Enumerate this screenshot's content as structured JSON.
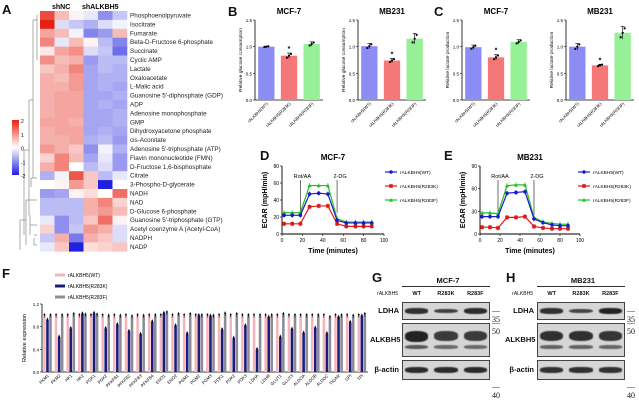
{
  "panels": {
    "A": "A",
    "B": "B",
    "C": "C",
    "D": "D",
    "E": "E",
    "F": "F",
    "G": "G",
    "H": "H"
  },
  "chart_data": [
    {
      "id": "A",
      "type": "heatmap",
      "group_labels": [
        "shNC",
        "shALKBH5"
      ],
      "columns": 6,
      "colorbar": {
        "min": -2,
        "max": 2,
        "ticks": [
          "2",
          "1",
          "0",
          "-1",
          "-2"
        ],
        "low_color": "#2020e0",
        "mid_color": "#ffffff",
        "high_color": "#e82010"
      },
      "rows": [
        {
          "name": "Phosphoenolpyruvate",
          "values": [
            1.6,
            0.6,
            0.1,
            -0.2,
            -1.0,
            -0.5
          ]
        },
        {
          "name": "Isocitrate",
          "values": [
            2.0,
            -0.3,
            -0.5,
            -0.7,
            -0.3,
            -0.1
          ]
        },
        {
          "name": "Fumarate",
          "values": [
            0.8,
            0.6,
            -0.1,
            -1.1,
            -0.9,
            0.6
          ]
        },
        {
          "name": "Beta-D-Fructose 6-phosphate",
          "values": [
            1.1,
            -0.2,
            0.6,
            0.1,
            -0.6,
            -1.1
          ]
        },
        {
          "name": "Succinate",
          "values": [
            0.2,
            0.8,
            1.0,
            -0.3,
            -0.5,
            -1.3
          ]
        },
        {
          "name": "Cyclic AMP",
          "values": [
            1.0,
            0.6,
            0.7,
            -0.9,
            -0.6,
            -0.6
          ]
        },
        {
          "name": "Lactate",
          "values": [
            0.5,
            0.7,
            1.1,
            -0.8,
            -0.6,
            -0.7
          ]
        },
        {
          "name": "Oxaloacetate",
          "values": [
            0.7,
            0.6,
            0.9,
            -0.8,
            -0.7,
            -0.7
          ]
        },
        {
          "name": "L-Malic acid",
          "values": [
            0.7,
            0.7,
            0.9,
            -0.8,
            -0.7,
            -0.8
          ]
        },
        {
          "name": "Guanosine 5'-diphosphate (GDP)",
          "values": [
            0.7,
            0.8,
            0.8,
            -0.8,
            -0.8,
            -0.7
          ]
        },
        {
          "name": "ADP",
          "values": [
            0.7,
            0.8,
            0.8,
            -0.8,
            -0.7,
            -0.8
          ]
        },
        {
          "name": "Adenosine monophosphate",
          "values": [
            0.7,
            0.8,
            0.8,
            -0.8,
            -0.8,
            -0.7
          ]
        },
        {
          "name": "GMP",
          "values": [
            0.8,
            0.8,
            0.7,
            -0.8,
            -0.8,
            -0.7
          ]
        },
        {
          "name": "Dihydroxyacetone phosphate",
          "values": [
            0.7,
            0.8,
            0.8,
            -0.8,
            -0.7,
            -0.8
          ]
        },
        {
          "name": "cis-Aconitate",
          "values": [
            0.7,
            0.7,
            0.8,
            -0.7,
            -0.6,
            -0.9
          ]
        },
        {
          "name": "Adenosine 5'-triphosphate (ATP)",
          "values": [
            0.9,
            0.7,
            0.5,
            -1.0,
            -0.1,
            -0.7
          ]
        },
        {
          "name": "Flavin mononucleotide (FMN)",
          "values": [
            0.4,
            1.1,
            0.6,
            -0.8,
            -0.2,
            -0.9
          ]
        },
        {
          "name": "D-Fructose 1,6-bisphosphate",
          "values": [
            0.7,
            1.1,
            0.0,
            -0.6,
            -0.3,
            -0.9
          ]
        },
        {
          "name": "Citrate",
          "values": [
            -0.7,
            -0.1,
            1.5,
            0.5,
            -0.6,
            -0.2
          ]
        },
        {
          "name": "3-Phospho-D-glycerate",
          "values": [
            0.0,
            0.1,
            0.9,
            0.5,
            -2.0,
            0.0
          ]
        },
        {
          "name": "NADH",
          "values": [
            -0.9,
            -0.8,
            0.1,
            0.3,
            0.0,
            1.3
          ]
        },
        {
          "name": "NAD",
          "values": [
            -0.6,
            -0.6,
            -0.6,
            0.7,
            1.1,
            0.4
          ]
        },
        {
          "name": "D-Glucose 6-phosphate",
          "values": [
            -0.6,
            -0.6,
            -0.6,
            0.7,
            0.9,
            0.6
          ]
        },
        {
          "name": "Guanosine 5'-triphosphate (GTP)",
          "values": [
            -0.2,
            -1.0,
            -0.6,
            0.5,
            1.3,
            0.1
          ]
        },
        {
          "name": "Acetyl coenzyme A (Acetyl-CoA)",
          "values": [
            0.4,
            -1.0,
            -0.5,
            0.9,
            0.7,
            -0.3
          ]
        },
        {
          "name": "NADPH",
          "values": [
            -0.5,
            0.7,
            -1.2,
            0.7,
            0.5,
            -0.3
          ]
        },
        {
          "name": "NADP",
          "values": [
            -0.2,
            0.5,
            -2.0,
            0.3,
            0.4,
            0.5
          ]
        }
      ]
    },
    {
      "id": "B1",
      "type": "bar",
      "title": "MCF-7",
      "ylabel": "Relative glucose consumption",
      "categories": [
        "rALKBH5(WT)",
        "rALKBH5(R283K)",
        "rALKBH5(R283F)"
      ],
      "values": [
        1.0,
        0.83,
        1.05
      ],
      "errors": [
        0.01,
        0.05,
        0.04
      ],
      "significance": [
        "",
        "*",
        ""
      ],
      "colors": [
        "#8c8cf5",
        "#f57878",
        "#96f096"
      ],
      "ylim": [
        0,
        1.5
      ],
      "yticks": [
        "0.0",
        "0.5",
        "1.0",
        "1.5"
      ]
    },
    {
      "id": "B2",
      "type": "bar",
      "title": "MB231",
      "ylabel": "Relative glucose consumption",
      "categories": [
        "rALKBH5(WT)",
        "rALKBH5(R283K)",
        "rALKBH5(R283F)"
      ],
      "values": [
        1.01,
        0.74,
        1.15
      ],
      "errors": [
        0.05,
        0.04,
        0.1
      ],
      "significance": [
        "",
        "*",
        ""
      ],
      "colors": [
        "#8c8cf5",
        "#f57878",
        "#96f096"
      ],
      "ylim": [
        0,
        1.5
      ],
      "yticks": [
        "0.0",
        "0.5",
        "1.0",
        "1.5"
      ]
    },
    {
      "id": "C1",
      "type": "bar",
      "title": "MCF-7",
      "ylabel": "Relative lactate production",
      "categories": [
        "rALKBH5(WT)",
        "rALKBH5(R283K)",
        "rALKBH5(R283F)"
      ],
      "values": [
        0.99,
        0.8,
        1.09
      ],
      "errors": [
        0.04,
        0.05,
        0.04
      ],
      "significance": [
        "",
        "*",
        ""
      ],
      "colors": [
        "#8c8cf5",
        "#f57878",
        "#96f096"
      ],
      "ylim": [
        0,
        1.5
      ],
      "yticks": [
        "0.0",
        "0.5",
        "1.0",
        "1.5"
      ]
    },
    {
      "id": "C2",
      "type": "bar",
      "title": "MB231",
      "ylabel": "Relative lactate production",
      "categories": [
        "rALKBH5(WT)",
        "rALKBH5(R283K)",
        "rALKBH5(R283F)"
      ],
      "values": [
        1.0,
        0.65,
        1.26
      ],
      "errors": [
        0.06,
        0.02,
        0.12
      ],
      "significance": [
        "",
        "*",
        ""
      ],
      "colors": [
        "#8c8cf5",
        "#f57878",
        "#96f096"
      ],
      "ylim": [
        0,
        1.5
      ],
      "yticks": [
        "0.0",
        "0.5",
        "1.0",
        "1.5"
      ]
    },
    {
      "id": "D",
      "type": "line",
      "title": "MCF-7",
      "xlabel": "Time (minutes)",
      "ylabel": "ECAR (mpH/min)",
      "x": [
        2,
        10,
        18,
        27,
        36,
        45,
        54,
        63,
        72,
        80,
        88
      ],
      "xlim": [
        0,
        100
      ],
      "xticks": [
        "0",
        "20",
        "40",
        "60",
        "80",
        "100"
      ],
      "ylim": [
        0,
        80
      ],
      "yticks": [
        "0",
        "20",
        "40",
        "60",
        "80"
      ],
      "annotations": [
        {
          "text": "Rot/AA",
          "x": 18
        },
        {
          "text": "2-DG",
          "x": 54
        }
      ],
      "legend_position": "right",
      "series": [
        {
          "name": "rALKBH5(WT)",
          "color": "#1a1ad0",
          "marker": "circle",
          "values": [
            22,
            22,
            22,
            47,
            48,
            47,
            16,
            13,
            13,
            13,
            13
          ]
        },
        {
          "name": "rALKBH5(R283K)",
          "color": "#e01818",
          "marker": "square",
          "values": [
            12,
            12,
            12,
            32,
            33,
            33,
            12,
            9,
            9,
            9,
            9
          ]
        },
        {
          "name": "rALKBH5(R283F)",
          "color": "#20c020",
          "marker": "triangle",
          "values": [
            25,
            25,
            25,
            57,
            57,
            57,
            18,
            14,
            14,
            14,
            14
          ]
        }
      ]
    },
    {
      "id": "E",
      "type": "line",
      "title": "MB231",
      "xlabel": "Time (minutes)",
      "ylabel": "ECAR (mpH/min)",
      "x": [
        2,
        10,
        18,
        27,
        36,
        45,
        54,
        63,
        72,
        80,
        88
      ],
      "xlim": [
        0,
        100
      ],
      "xticks": [
        "0",
        "20",
        "40",
        "60",
        "80",
        "100"
      ],
      "ylim": [
        0,
        90
      ],
      "yticks": [
        "0",
        "30",
        "60",
        "90"
      ],
      "annotations": [
        {
          "text": "Rot/AA",
          "x": 18
        },
        {
          "text": "2-DG",
          "x": 54
        }
      ],
      "legend_position": "right",
      "series": [
        {
          "name": "rALKBH5(WT)",
          "color": "#1a1ad0",
          "marker": "circle",
          "values": [
            23,
            23,
            23,
            54,
            55,
            56,
            20,
            15,
            12,
            11,
            11
          ]
        },
        {
          "name": "rALKBH5(R283K)",
          "color": "#e01818",
          "marker": "square",
          "values": [
            9,
            9,
            8,
            22,
            22,
            23,
            10,
            8,
            7,
            7,
            7
          ]
        },
        {
          "name": "rALKBH5(R283F)",
          "color": "#20c020",
          "marker": "triangle",
          "values": [
            28,
            28,
            27,
            64,
            65,
            65,
            22,
            16,
            14,
            13,
            13
          ]
        }
      ]
    },
    {
      "id": "F",
      "type": "bar",
      "ylabel": "Relative expression",
      "ylim": [
        0,
        1.2
      ],
      "yticks": [
        "0.0",
        "0.4",
        "0.8",
        "1.2"
      ],
      "legend_position": "top-left",
      "categories": [
        "PKM1",
        "PKM2",
        "HK1",
        "HK2",
        "PGK1",
        "PGK2",
        "PFKFB1",
        "PFKFB2",
        "PFKFB3",
        "PFKFB4",
        "ENO1",
        "ENO2",
        "PGM1",
        "PGM2",
        "PGM3",
        "PDK1",
        "PDK2",
        "PDK3",
        "LDHA",
        "LDHB",
        "GLUT1",
        "GLUT3",
        "ALDOA",
        "ALDOB",
        "ALDOC",
        "TIGAR",
        "GPI",
        "TPI"
      ],
      "series": [
        {
          "name": "rALKBH5(WT)",
          "color": "#f4b6bc",
          "values": [
            1,
            1,
            1,
            1,
            1,
            1,
            1,
            1,
            1,
            1,
            1,
            1,
            1,
            1,
            1,
            1,
            1,
            1,
            1,
            1,
            1,
            1,
            1,
            1,
            1,
            1,
            1,
            1
          ]
        },
        {
          "name": "rALKBH5(R283K)",
          "color": "#1c1c78",
          "values": [
            0.92,
            0.62,
            0.77,
            1.03,
            1.04,
            0.77,
            0.84,
            0.72,
            0.67,
            0.89,
            1.04,
            0.82,
            0.68,
            1.0,
            0.99,
            0.75,
            0.6,
            0.82,
            0.4,
            0.97,
            0.62,
            0.76,
            0.69,
            0.78,
            0.68,
            0.97,
            0.88,
            0.99
          ]
        },
        {
          "name": "rALKBH5(R283F)",
          "color": "#8c8c98",
          "values": [
            1,
            1,
            1.02,
            1.01,
            1.01,
            0.99,
            0.99,
            0.98,
            0.99,
            1.0,
            1.05,
            1.02,
            1.02,
            1.0,
            0.99,
            1.03,
            1.02,
            1.0,
            1.0,
            1.0,
            1.02,
            1.0,
            1.0,
            1.0,
            0.97,
            1.0,
            0.99,
            1.02
          ]
        }
      ]
    }
  ],
  "blots": {
    "G": {
      "cell_line": "MCF-7",
      "row_header": "rALKBH5",
      "lanes": [
        "WT",
        "R283K",
        "R283F"
      ],
      "rows": [
        {
          "name": "LDHA",
          "mw": "35",
          "intensities": [
            0.85,
            0.7,
            0.9
          ]
        },
        {
          "name": "ALKBH5",
          "mw": "50",
          "intensities": [
            1.0,
            0.75,
            0.75
          ]
        },
        {
          "name": "β-actin",
          "mw": "40",
          "intensities": [
            0.9,
            0.9,
            0.9
          ]
        }
      ]
    },
    "H": {
      "cell_line": "MB231",
      "row_header": "rALKBH5",
      "lanes": [
        "WT",
        "R283K",
        "R283F"
      ],
      "rows": [
        {
          "name": "LDHA",
          "mw": "35",
          "intensities": [
            0.85,
            0.65,
            1.0
          ]
        },
        {
          "name": "ALKBH5",
          "mw": "50",
          "intensities": [
            0.85,
            0.85,
            0.8
          ]
        },
        {
          "name": "β-actin",
          "mw": "40",
          "intensities": [
            0.85,
            0.85,
            0.85
          ]
        }
      ]
    }
  }
}
